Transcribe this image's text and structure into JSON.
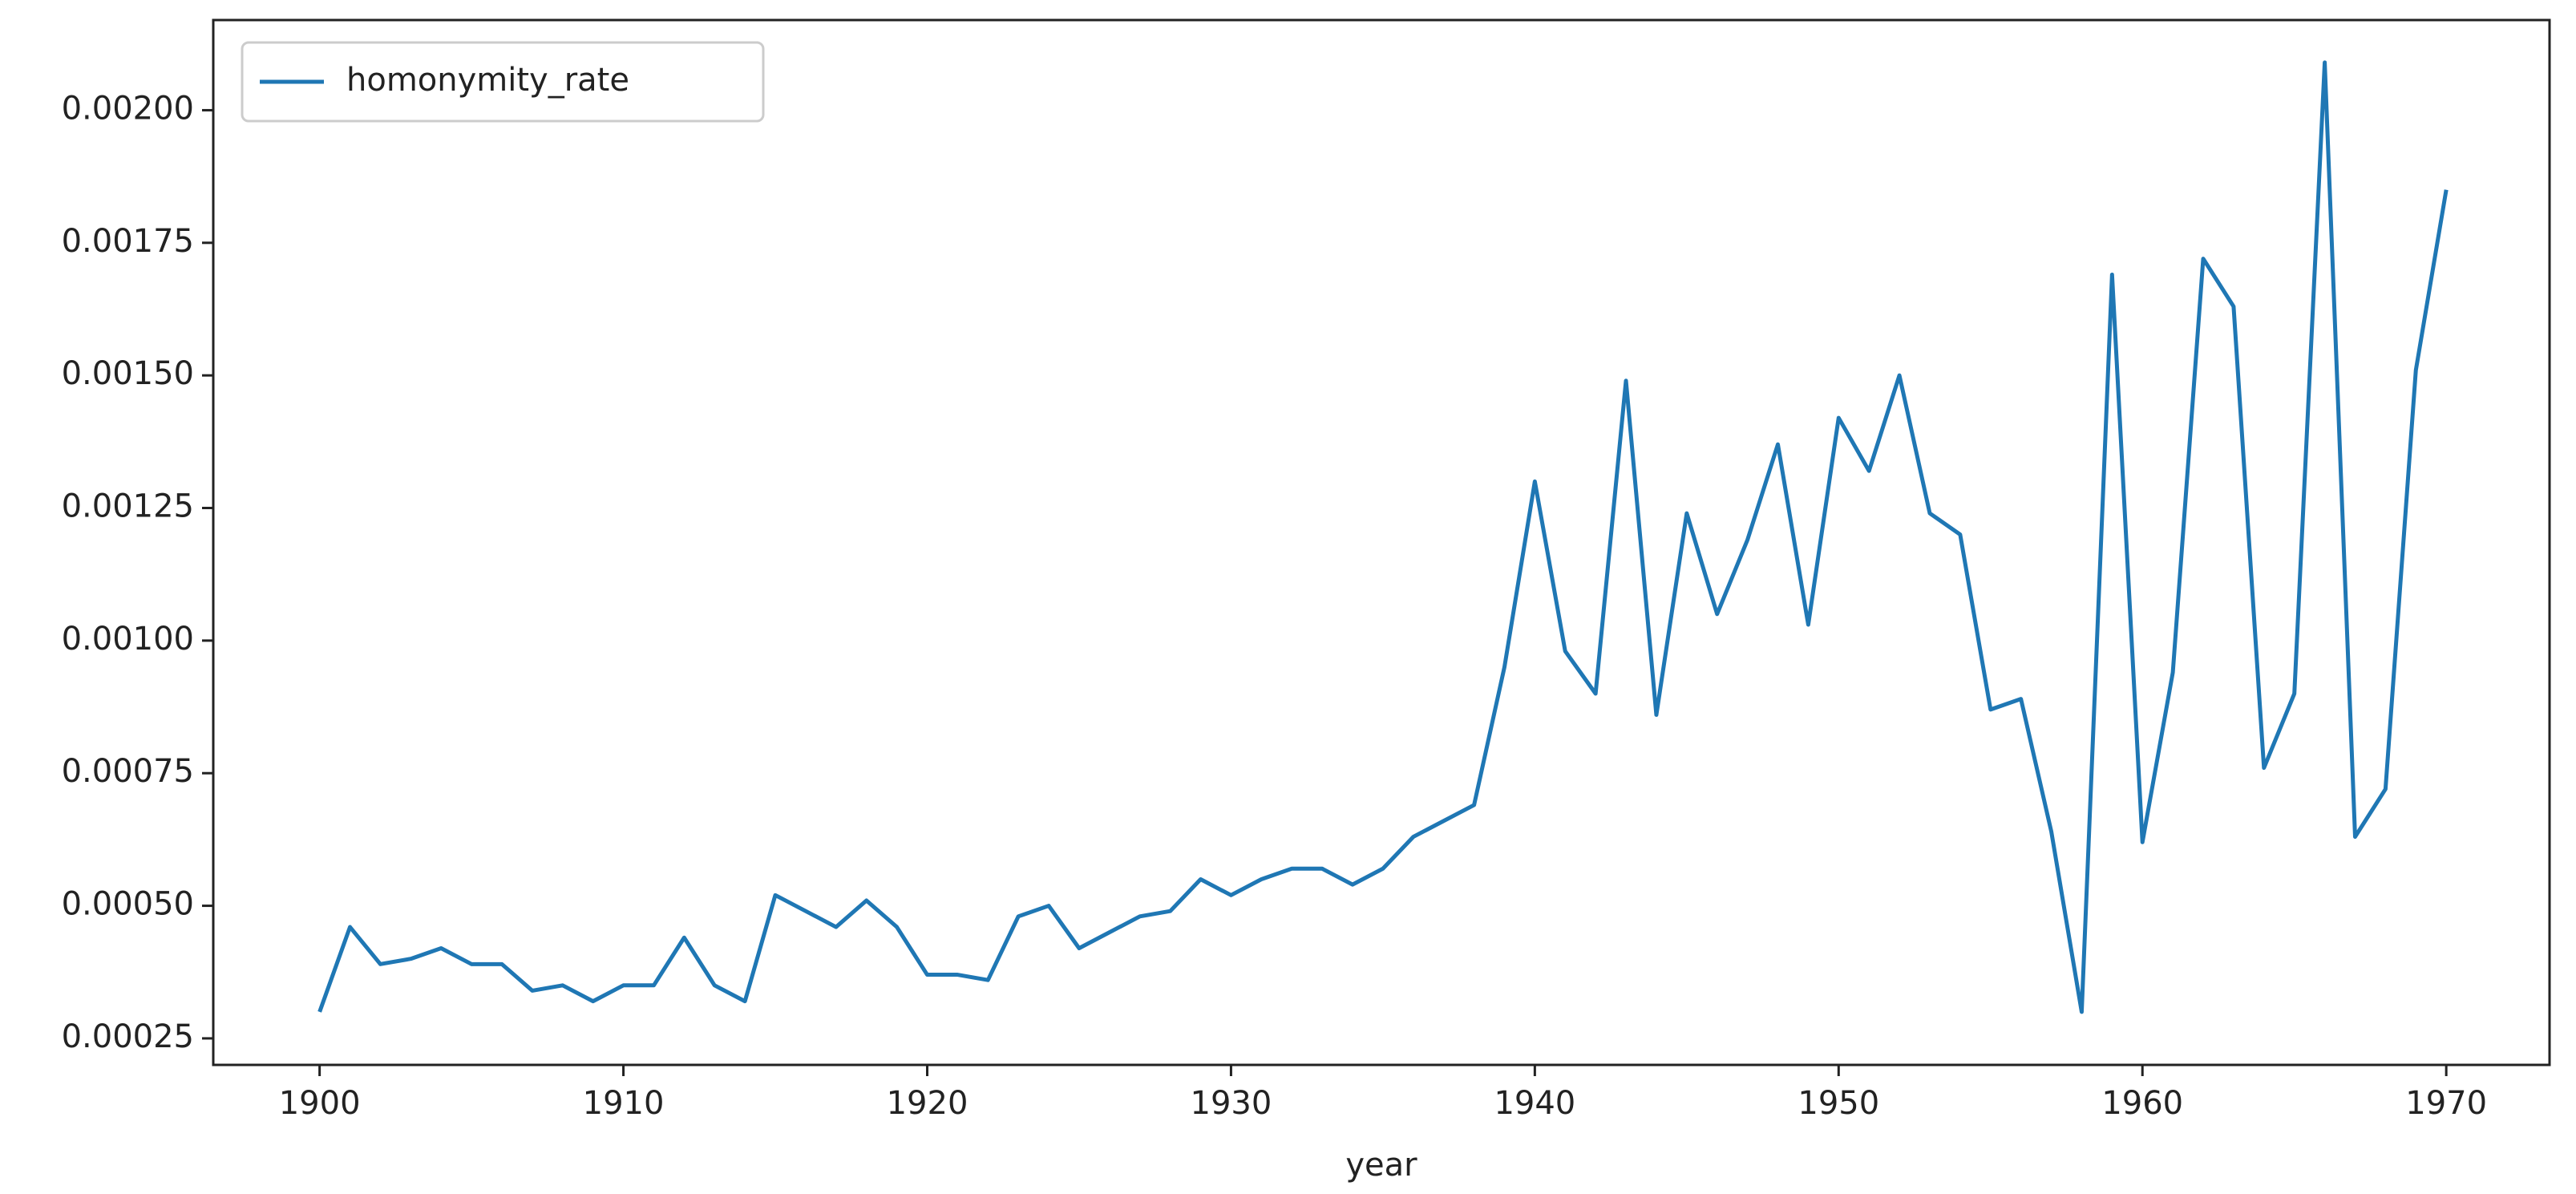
{
  "chart_data": {
    "type": "line",
    "xlabel": "year",
    "x": [
      1900,
      1901,
      1902,
      1903,
      1904,
      1905,
      1906,
      1907,
      1908,
      1909,
      1910,
      1911,
      1912,
      1913,
      1914,
      1915,
      1916,
      1917,
      1918,
      1919,
      1920,
      1921,
      1922,
      1923,
      1924,
      1925,
      1926,
      1927,
      1928,
      1929,
      1930,
      1931,
      1932,
      1933,
      1934,
      1935,
      1936,
      1937,
      1938,
      1939,
      1940,
      1941,
      1942,
      1943,
      1944,
      1945,
      1946,
      1947,
      1948,
      1949,
      1950,
      1951,
      1952,
      1953,
      1954,
      1955,
      1956,
      1957,
      1958,
      1959,
      1960,
      1961,
      1962,
      1963,
      1964,
      1965,
      1966,
      1967,
      1968,
      1969,
      1970
    ],
    "series": [
      {
        "name": "homonymity_rate",
        "color": "#1f77b4",
        "values": [
          0.0003,
          0.00046,
          0.00039,
          0.0004,
          0.00042,
          0.00039,
          0.00039,
          0.00034,
          0.00035,
          0.00032,
          0.00035,
          0.00035,
          0.00044,
          0.00035,
          0.00032,
          0.00052,
          0.00049,
          0.00046,
          0.00051,
          0.00046,
          0.00037,
          0.00037,
          0.00036,
          0.00048,
          0.0005,
          0.00042,
          0.00045,
          0.00048,
          0.00049,
          0.00055,
          0.00052,
          0.00055,
          0.00057,
          0.00057,
          0.00054,
          0.00057,
          0.00063,
          0.00066,
          0.00069,
          0.00095,
          0.0013,
          0.00098,
          0.0009,
          0.00149,
          0.00086,
          0.00124,
          0.00105,
          0.00119,
          0.00137,
          0.00103,
          0.00142,
          0.00132,
          0.0015,
          0.00124,
          0.0012,
          0.00087,
          0.00089,
          0.00064,
          0.0003,
          0.00169,
          0.00062,
          0.00094,
          0.00172,
          0.00163,
          0.00076,
          0.0009,
          0.00209,
          0.00063,
          0.00072,
          0.00151,
          0.00185
        ]
      }
    ],
    "xlim": [
      1896.5,
      1973.4
    ],
    "xticks": [
      1900,
      1910,
      1920,
      1930,
      1940,
      1950,
      1960,
      1970
    ],
    "ylim": [
      0.0002,
      0.00217
    ],
    "yticks": [
      0.00025,
      {
        "value": 0.0005,
        "label": "0.00050"
      },
      0.00075,
      {
        "value": 0.001,
        "label": "0.00100"
      },
      0.00125,
      {
        "value": 0.0015,
        "label": "0.00150"
      },
      0.00175,
      {
        "value": 0.002,
        "label": "0.00200"
      }
    ],
    "legend": "upper left",
    "grid": false
  }
}
